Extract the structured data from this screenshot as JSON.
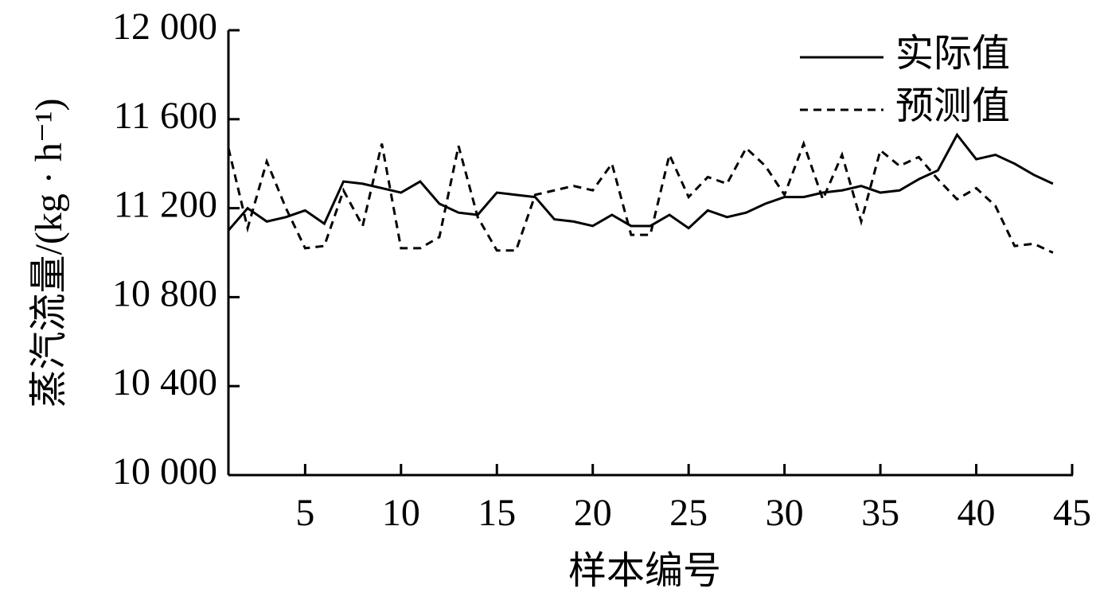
{
  "chart_data": {
    "type": "line",
    "x_label": "样本编号",
    "y_label": "蒸汽流量/(kg · h⁻¹)",
    "x": [
      1,
      2,
      3,
      4,
      5,
      6,
      7,
      8,
      9,
      10,
      11,
      12,
      13,
      14,
      15,
      16,
      17,
      18,
      19,
      20,
      21,
      22,
      23,
      24,
      25,
      26,
      27,
      28,
      29,
      30,
      31,
      32,
      33,
      34,
      35,
      36,
      37,
      38,
      39,
      40,
      41,
      42,
      43,
      44
    ],
    "series": [
      {
        "name": "实际值",
        "color": "#000000",
        "style": "solid",
        "values": [
          11100,
          11200,
          11140,
          11160,
          11190,
          11130,
          11320,
          11310,
          11290,
          11270,
          11320,
          11220,
          11180,
          11170,
          11270,
          11260,
          11250,
          11150,
          11140,
          11120,
          11170,
          11120,
          11120,
          11170,
          11110,
          11190,
          11160,
          11180,
          11220,
          11250,
          11250,
          11270,
          11280,
          11300,
          11270,
          11280,
          11330,
          11370,
          11530,
          11420,
          11440,
          11400,
          11350,
          11310
        ]
      },
      {
        "name": "预测值",
        "color": "#000000",
        "style": "dashed",
        "values": [
          11470,
          11110,
          11410,
          11200,
          11020,
          11030,
          11280,
          11120,
          11490,
          11020,
          11020,
          11070,
          11480,
          11160,
          11010,
          11010,
          11260,
          11280,
          11300,
          11280,
          11400,
          11080,
          11080,
          11440,
          11250,
          11340,
          11310,
          11470,
          11390,
          11260,
          11490,
          11240,
          11440,
          11140,
          11460,
          11390,
          11430,
          11330,
          11240,
          11290,
          11210,
          11030,
          11040,
          11000
        ]
      }
    ],
    "xlim": [
      1,
      45
    ],
    "xticks": [
      5,
      10,
      15,
      20,
      25,
      30,
      35,
      40,
      45
    ],
    "ylim": [
      10000,
      12000
    ],
    "yticks": [
      {
        "value": 10000,
        "label": "10 000"
      },
      {
        "value": 10400,
        "label": "10 400"
      },
      {
        "value": 10800,
        "label": "10 800"
      },
      {
        "value": 11200,
        "label": "11 200"
      },
      {
        "value": 11600,
        "label": "11 600"
      },
      {
        "value": 12000,
        "label": "12 000"
      }
    ],
    "grid": false,
    "legend": "upper right"
  }
}
